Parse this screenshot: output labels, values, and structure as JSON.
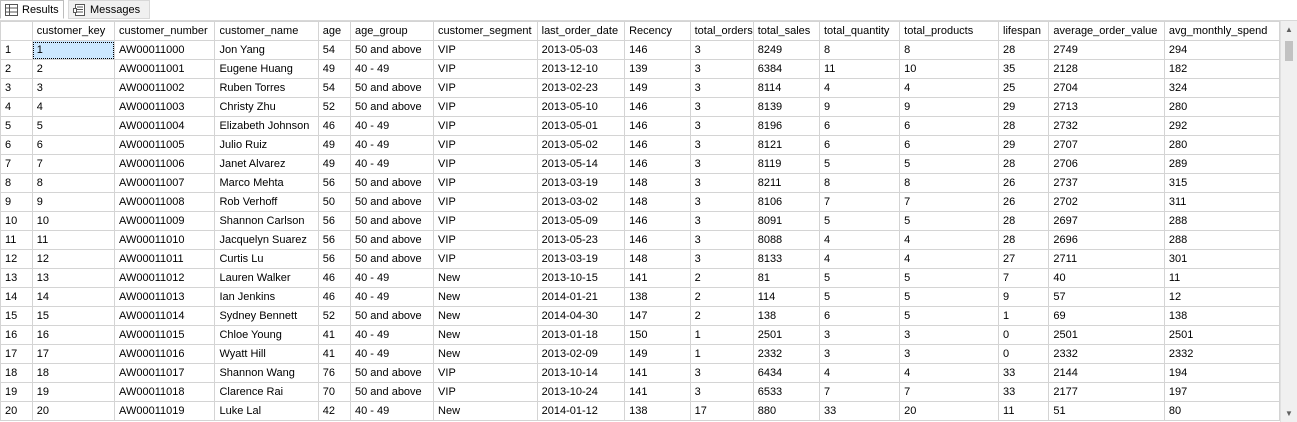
{
  "tabs": [
    {
      "label": "Results",
      "icon": "grid-icon"
    },
    {
      "label": "Messages",
      "icon": "messages-icon"
    }
  ],
  "columns": [
    "customer_key",
    "customer_number",
    "customer_name",
    "age",
    "age_group",
    "customer_segment",
    "last_order_date",
    "Recency",
    "total_orders",
    "total_sales",
    "total_quantity",
    "total_products",
    "lifespan",
    "average_order_value",
    "avg_monthly_spend"
  ],
  "rows": [
    [
      "1",
      "AW00011000",
      "Jon Yang",
      "54",
      "50 and above",
      "VIP",
      "2013-05-03",
      "146",
      "3",
      "8249",
      "8",
      "8",
      "28",
      "2749",
      "294"
    ],
    [
      "2",
      "AW00011001",
      "Eugene Huang",
      "49",
      "40 - 49",
      "VIP",
      "2013-12-10",
      "139",
      "3",
      "6384",
      "11",
      "10",
      "35",
      "2128",
      "182"
    ],
    [
      "3",
      "AW00011002",
      "Ruben Torres",
      "54",
      "50 and above",
      "VIP",
      "2013-02-23",
      "149",
      "3",
      "8114",
      "4",
      "4",
      "25",
      "2704",
      "324"
    ],
    [
      "4",
      "AW00011003",
      "Christy Zhu",
      "52",
      "50 and above",
      "VIP",
      "2013-05-10",
      "146",
      "3",
      "8139",
      "9",
      "9",
      "29",
      "2713",
      "280"
    ],
    [
      "5",
      "AW00011004",
      "Elizabeth Johnson",
      "46",
      "40 - 49",
      "VIP",
      "2013-05-01",
      "146",
      "3",
      "8196",
      "6",
      "6",
      "28",
      "2732",
      "292"
    ],
    [
      "6",
      "AW00011005",
      "Julio Ruiz",
      "49",
      "40 - 49",
      "VIP",
      "2013-05-02",
      "146",
      "3",
      "8121",
      "6",
      "6",
      "29",
      "2707",
      "280"
    ],
    [
      "7",
      "AW00011006",
      "Janet Alvarez",
      "49",
      "40 - 49",
      "VIP",
      "2013-05-14",
      "146",
      "3",
      "8119",
      "5",
      "5",
      "28",
      "2706",
      "289"
    ],
    [
      "8",
      "AW00011007",
      "Marco Mehta",
      "56",
      "50 and above",
      "VIP",
      "2013-03-19",
      "148",
      "3",
      "8211",
      "8",
      "8",
      "26",
      "2737",
      "315"
    ],
    [
      "9",
      "AW00011008",
      "Rob Verhoff",
      "50",
      "50 and above",
      "VIP",
      "2013-03-02",
      "148",
      "3",
      "8106",
      "7",
      "7",
      "26",
      "2702",
      "311"
    ],
    [
      "10",
      "AW00011009",
      "Shannon Carlson",
      "56",
      "50 and above",
      "VIP",
      "2013-05-09",
      "146",
      "3",
      "8091",
      "5",
      "5",
      "28",
      "2697",
      "288"
    ],
    [
      "11",
      "AW00011010",
      "Jacquelyn Suarez",
      "56",
      "50 and above",
      "VIP",
      "2013-05-23",
      "146",
      "3",
      "8088",
      "4",
      "4",
      "28",
      "2696",
      "288"
    ],
    [
      "12",
      "AW00011011",
      "Curtis Lu",
      "56",
      "50 and above",
      "VIP",
      "2013-03-19",
      "148",
      "3",
      "8133",
      "4",
      "4",
      "27",
      "2711",
      "301"
    ],
    [
      "13",
      "AW00011012",
      "Lauren Walker",
      "46",
      "40 - 49",
      "New",
      "2013-10-15",
      "141",
      "2",
      "81",
      "5",
      "5",
      "7",
      "40",
      "11"
    ],
    [
      "14",
      "AW00011013",
      "Ian Jenkins",
      "46",
      "40 - 49",
      "New",
      "2014-01-21",
      "138",
      "2",
      "114",
      "5",
      "5",
      "9",
      "57",
      "12"
    ],
    [
      "15",
      "AW00011014",
      "Sydney Bennett",
      "52",
      "50 and above",
      "New",
      "2014-04-30",
      "147",
      "2",
      "138",
      "6",
      "5",
      "1",
      "69",
      "138"
    ],
    [
      "16",
      "AW00011015",
      "Chloe Young",
      "41",
      "40 - 49",
      "New",
      "2013-01-18",
      "150",
      "1",
      "2501",
      "3",
      "3",
      "0",
      "2501",
      "2501"
    ],
    [
      "17",
      "AW00011016",
      "Wyatt Hill",
      "41",
      "40 - 49",
      "New",
      "2013-02-09",
      "149",
      "1",
      "2332",
      "3",
      "3",
      "0",
      "2332",
      "2332"
    ],
    [
      "18",
      "AW00011017",
      "Shannon Wang",
      "76",
      "50 and above",
      "VIP",
      "2013-10-14",
      "141",
      "3",
      "6434",
      "4",
      "4",
      "33",
      "2144",
      "194"
    ],
    [
      "19",
      "AW00011018",
      "Clarence Rai",
      "70",
      "50 and above",
      "VIP",
      "2013-10-24",
      "141",
      "3",
      "6533",
      "7",
      "7",
      "33",
      "2177",
      "197"
    ],
    [
      "20",
      "AW00011019",
      "Luke Lal",
      "42",
      "40 - 49",
      "New",
      "2014-01-12",
      "138",
      "17",
      "880",
      "33",
      "20",
      "11",
      "51",
      "80"
    ]
  ]
}
